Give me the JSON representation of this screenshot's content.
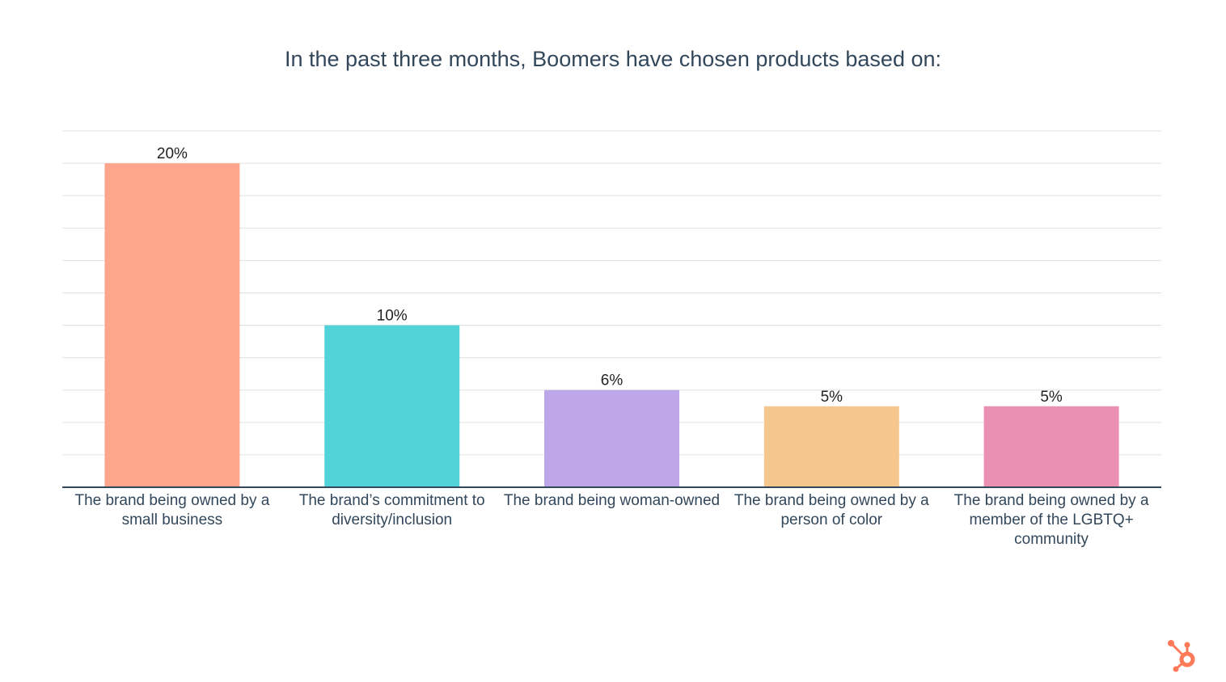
{
  "chart_data": {
    "type": "bar",
    "title": "In the past three months, Boomers have chosen products based on:",
    "categories": [
      "The brand being owned by a small business",
      "The brand’s commitment to diversity/inclusion",
      "The brand being woman-owned",
      "The brand being owned by a person of color",
      "The brand being owned by a member of the LGBTQ+ community"
    ],
    "values": [
      20,
      10,
      6,
      5,
      5
    ],
    "data_labels": [
      "20%",
      "10%",
      "6%",
      "5%",
      "5%"
    ],
    "colors": [
      "#fea58e",
      "#51d3d9",
      "#bea7e8",
      "#f5c78e",
      "#ea90b1"
    ],
    "xlabel": "",
    "ylabel": "",
    "ylim": [
      0,
      22
    ],
    "grid": true,
    "y_tick_labels_shown": false
  },
  "logo": {
    "name": "hubspot-logo",
    "color": "#ff7a59"
  }
}
